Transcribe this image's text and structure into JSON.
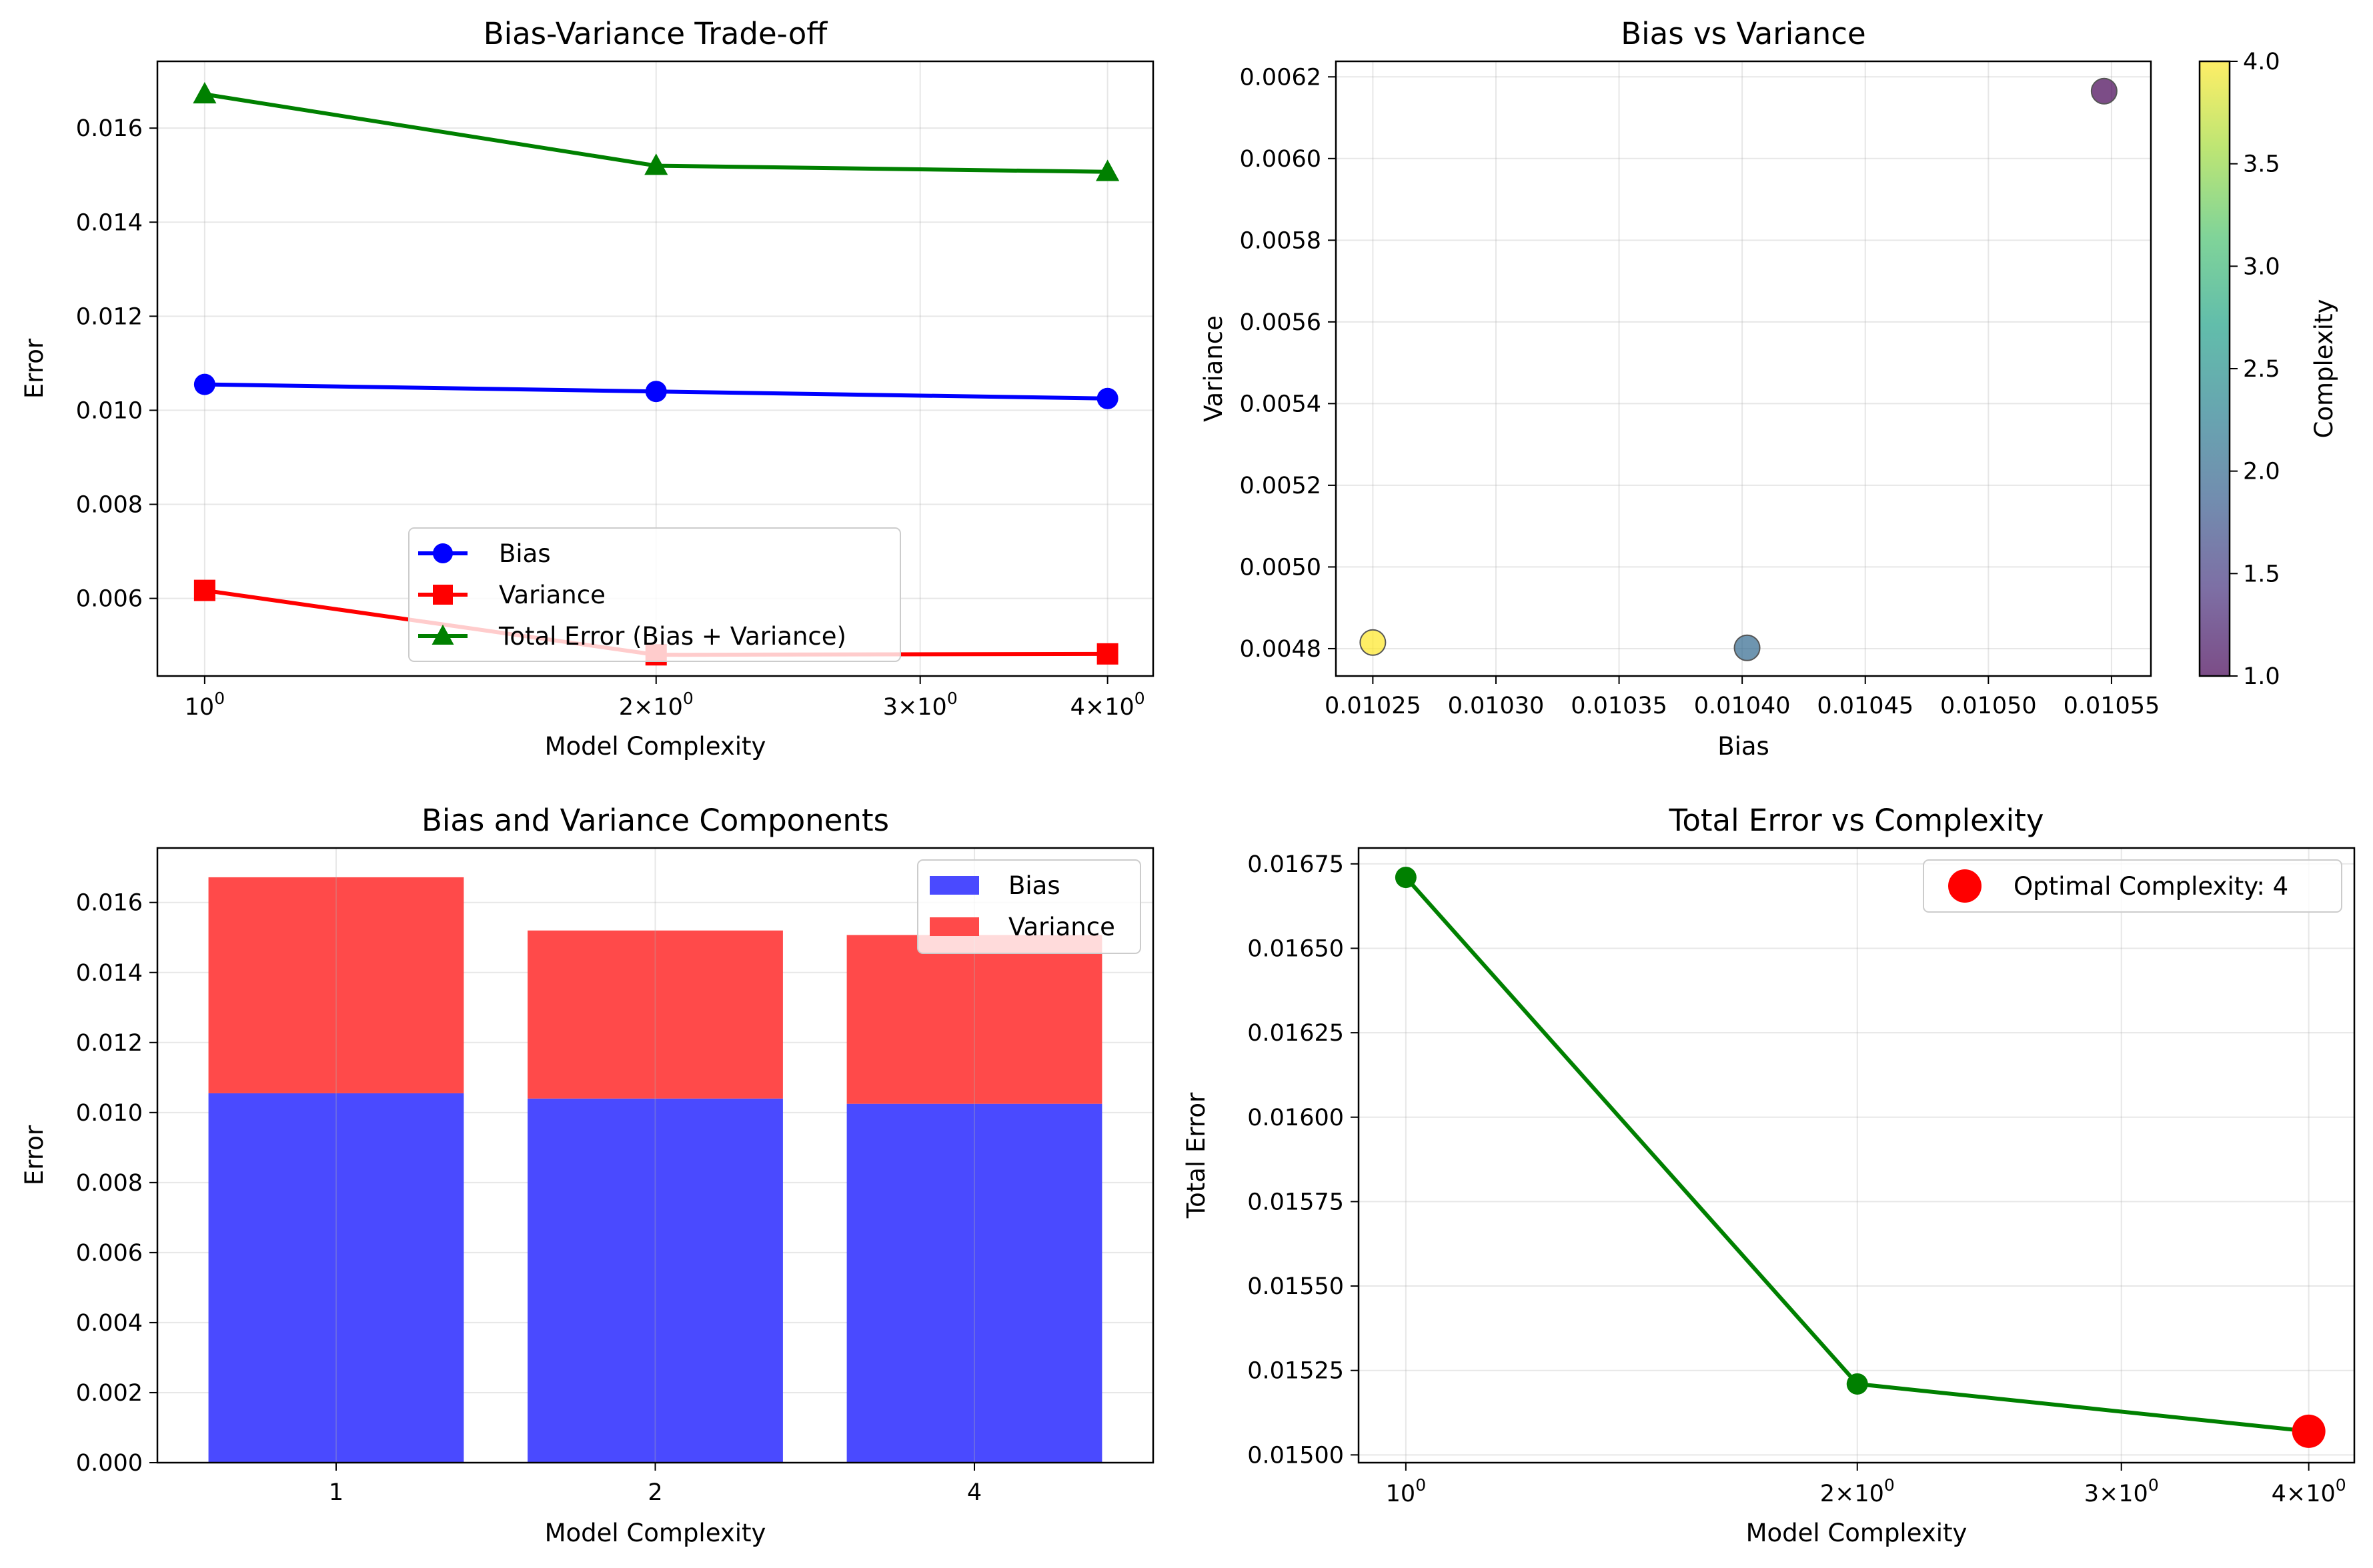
{
  "chart_data": [
    {
      "type": "line",
      "title": "Bias-Variance Trade-off",
      "xlabel": "Model Complexity",
      "ylabel": "Error",
      "xscale": "log",
      "xlim": [
        0.93,
        4.29
      ],
      "ylim": [
        0.00435,
        0.01742
      ],
      "x": [
        1,
        2,
        4
      ],
      "x_tick_labels": [
        "10^0",
        "2×10^0",
        "3×10^0",
        "4×10^0"
      ],
      "y_ticks": [
        "0.006",
        "0.008",
        "0.010",
        "0.012",
        "0.014",
        "0.016"
      ],
      "grid": true,
      "legend_position": "lower center",
      "series": [
        {
          "name": "Bias",
          "values": [
            0.01055,
            0.0104,
            0.01025
          ],
          "color": "#0000ff",
          "marker": "circle"
        },
        {
          "name": "Variance",
          "values": [
            0.00617,
            0.0048,
            0.00482
          ],
          "color": "#ff0000",
          "marker": "square"
        },
        {
          "name": "Total Error (Bias + Variance)",
          "values": [
            0.01672,
            0.0152,
            0.01507
          ],
          "color": "#008000",
          "marker": "triangle"
        }
      ]
    },
    {
      "type": "scatter",
      "title": "Bias vs Variance",
      "xlabel": "Bias",
      "ylabel": "Variance",
      "xlim": [
        0.010235,
        0.010566
      ],
      "ylim": [
        0.004733,
        0.006238
      ],
      "x_ticks": [
        "0.01025",
        "0.01030",
        "0.01035",
        "0.01040",
        "0.01045",
        "0.01050",
        "0.01055"
      ],
      "y_ticks": [
        "0.0048",
        "0.0050",
        "0.0052",
        "0.0054",
        "0.0056",
        "0.0058",
        "0.0060",
        "0.0062"
      ],
      "grid": true,
      "points": [
        {
          "x": 0.010547,
          "y": 0.006165,
          "complexity": 1,
          "color": "#440154"
        },
        {
          "x": 0.010402,
          "y": 0.004802,
          "complexity": 2,
          "color": "#31688e"
        },
        {
          "x": 0.01025,
          "y": 0.004815,
          "complexity": 4,
          "color": "#fde725"
        }
      ],
      "colorbar": {
        "label": "Complexity",
        "range": [
          1.0,
          4.0
        ],
        "ticks": [
          "1.0",
          "1.5",
          "2.0",
          "2.5",
          "3.0",
          "3.5",
          "4.0"
        ],
        "colors": [
          "#440154",
          "#46327e",
          "#365c8d",
          "#277f8e",
          "#1fa187",
          "#4ac16d",
          "#a0da39",
          "#fde725"
        ]
      }
    },
    {
      "type": "bar",
      "title": "Bias and Variance Components",
      "xlabel": "Model Complexity",
      "ylabel": "Error",
      "stacked": true,
      "categories": [
        "1",
        "2",
        "4"
      ],
      "ylim": [
        0,
        0.017556
      ],
      "y_ticks": [
        "0.000",
        "0.002",
        "0.004",
        "0.006",
        "0.008",
        "0.010",
        "0.012",
        "0.014",
        "0.016"
      ],
      "grid": true,
      "legend_position": "upper right",
      "series": [
        {
          "name": "Bias",
          "values": [
            0.01055,
            0.0104,
            0.01025
          ],
          "color": "#4a4aff"
        },
        {
          "name": "Variance",
          "values": [
            0.00617,
            0.0048,
            0.00482
          ],
          "color": "#ff4a4a"
        }
      ]
    },
    {
      "type": "line",
      "title": "Total Error vs Complexity",
      "xlabel": "Model Complexity",
      "ylabel": "Total Error",
      "xscale": "log",
      "xlim": [
        0.93,
        4.29
      ],
      "ylim": [
        0.014977,
        0.016797
      ],
      "x_tick_labels": [
        "10^0",
        "2×10^0",
        "3×10^0",
        "4×10^0"
      ],
      "y_ticks": [
        "0.01500",
        "0.01525",
        "0.01550",
        "0.01575",
        "0.01600",
        "0.01625",
        "0.01650",
        "0.01675"
      ],
      "grid": true,
      "legend_position": "upper right",
      "series": [
        {
          "x": [
            1,
            2,
            4
          ],
          "values": [
            0.01671,
            0.01521,
            0.01507
          ],
          "color": "#008000",
          "marker": "circle"
        }
      ],
      "highlight": {
        "name": "Optimal Complexity: 4",
        "x": 4,
        "y": 0.01507,
        "color": "#ff0000"
      }
    }
  ]
}
